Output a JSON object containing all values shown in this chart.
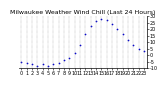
{
  "title": "Milwaukee Weather Wind Chill (Last 24 Hours)",
  "hours": [
    0,
    1,
    2,
    3,
    4,
    5,
    6,
    7,
    8,
    9,
    10,
    11,
    12,
    13,
    14,
    15,
    16,
    17,
    18,
    19,
    20,
    21,
    22,
    23
  ],
  "wind_chill": [
    -5,
    -6,
    -7,
    -8,
    -7,
    -8,
    -7,
    -6,
    -4,
    -2,
    2,
    8,
    16,
    22,
    26,
    28,
    27,
    24,
    20,
    16,
    12,
    8,
    5,
    3
  ],
  "dot_color": "#0000cc",
  "bg_color": "#ffffff",
  "grid_color": "#888888",
  "title_color": "#000000",
  "ylim": [
    -10,
    30
  ],
  "yticks": [
    -10,
    -5,
    0,
    5,
    10,
    15,
    20,
    25,
    30
  ],
  "ytick_labels": [
    "-10",
    "-5",
    "0",
    "5",
    "10",
    "15",
    "20",
    "25",
    "30"
  ],
  "xticks": [
    0,
    1,
    2,
    3,
    4,
    5,
    6,
    7,
    8,
    9,
    10,
    11,
    12,
    13,
    14,
    15,
    16,
    17,
    18,
    19,
    20,
    21,
    22,
    23
  ],
  "dot_size": 2.5,
  "title_fontsize": 4.5,
  "tick_fontsize": 3.5,
  "line_color": "#000000"
}
